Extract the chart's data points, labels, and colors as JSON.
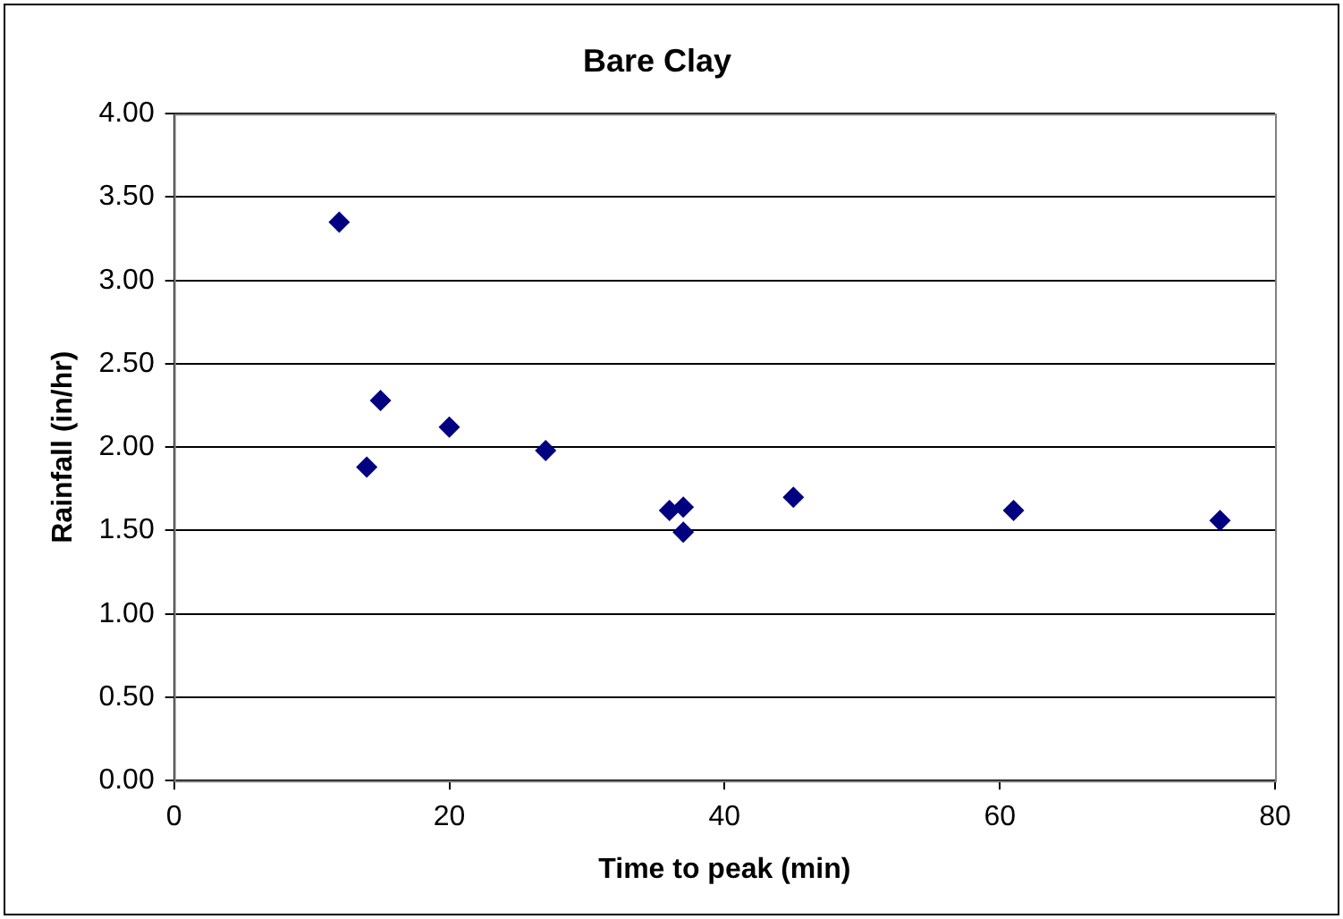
{
  "chart_data": {
    "type": "scatter",
    "title": "Bare Clay",
    "xlabel": "Time to peak (min)",
    "ylabel": "Rainfall (in/hr)",
    "x": [
      12,
      14,
      15,
      20,
      27,
      36,
      37,
      37,
      45,
      61,
      76
    ],
    "series": [
      {
        "color": "#000080",
        "values": [
          3.35,
          1.88,
          2.28,
          2.12,
          1.98,
          1.62,
          1.64,
          1.49,
          1.7,
          1.62,
          1.56
        ]
      }
    ],
    "xlim": [
      0,
      80
    ],
    "xticks": [
      0,
      20,
      40,
      60,
      80
    ],
    "ylim": [
      0,
      4
    ],
    "yticks": [
      {
        "value": 0,
        "label": "0.00"
      },
      {
        "value": 0.5,
        "label": "0.50"
      },
      {
        "value": 1,
        "label": "1.00"
      },
      {
        "value": 1.5,
        "label": "1.50"
      },
      {
        "value": 2,
        "label": "2.00"
      },
      {
        "value": 2.5,
        "label": "2.50"
      },
      {
        "value": 3,
        "label": "3.00"
      },
      {
        "value": 3.5,
        "label": "3.50"
      },
      {
        "value": 4,
        "label": "4.00"
      }
    ],
    "grid": "y",
    "legend": false,
    "marker": "diamond"
  }
}
